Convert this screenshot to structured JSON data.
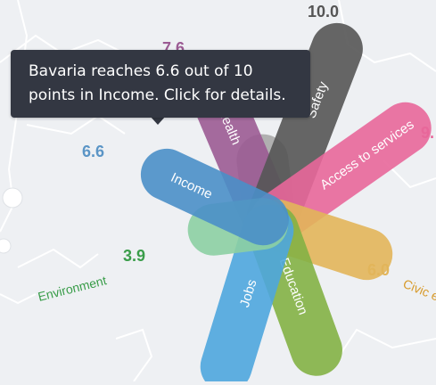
{
  "region": "Bavaria",
  "colors": {
    "background": "#eef0f3",
    "map_stroke": "#ffffff",
    "tooltip_bg": "#333742",
    "tooltip_text": "#ffffff"
  },
  "tooltip": {
    "line1": "Bavaria reaches 6.6 out of 10",
    "line2": "points in Income. Click for details."
  },
  "dimensions": [
    {
      "key": "housing",
      "label": "",
      "value": "",
      "score": 4.2,
      "color": "#a9a9a9",
      "icon": "housing-petal"
    },
    {
      "key": "health",
      "label": "Health",
      "value": "7.6",
      "score": 7.6,
      "color": "#9b5b93",
      "icon": "health-petal"
    },
    {
      "key": "safety",
      "label": "Safety",
      "value": "10.0",
      "score": 10.0,
      "color": "#555555",
      "icon": "safety-petal"
    },
    {
      "key": "access",
      "label": "Access to services",
      "value": "9.",
      "score": 9.0,
      "color": "#e8679a",
      "icon": "access-petal"
    },
    {
      "key": "civic",
      "label": "Civic e",
      "value": "6.0",
      "score": 6.0,
      "color": "#e2b55a",
      "icon": "civic-petal"
    },
    {
      "key": "education",
      "label": "Education",
      "value": "",
      "score": 7.6,
      "color": "#83b145",
      "icon": "education-petal"
    },
    {
      "key": "jobs",
      "label": "Jobs",
      "value": "",
      "score": 8.3,
      "color": "#4ea6de",
      "icon": "jobs-petal"
    },
    {
      "key": "environment",
      "label": "Environment",
      "value": "3.9",
      "score": 3.9,
      "color": "#8ccfa3",
      "icon": "environment-petal"
    },
    {
      "key": "income",
      "label": "Income",
      "value": "6.6",
      "score": 6.6,
      "color": "#4a8fc8",
      "icon": "income-petal"
    }
  ]
}
